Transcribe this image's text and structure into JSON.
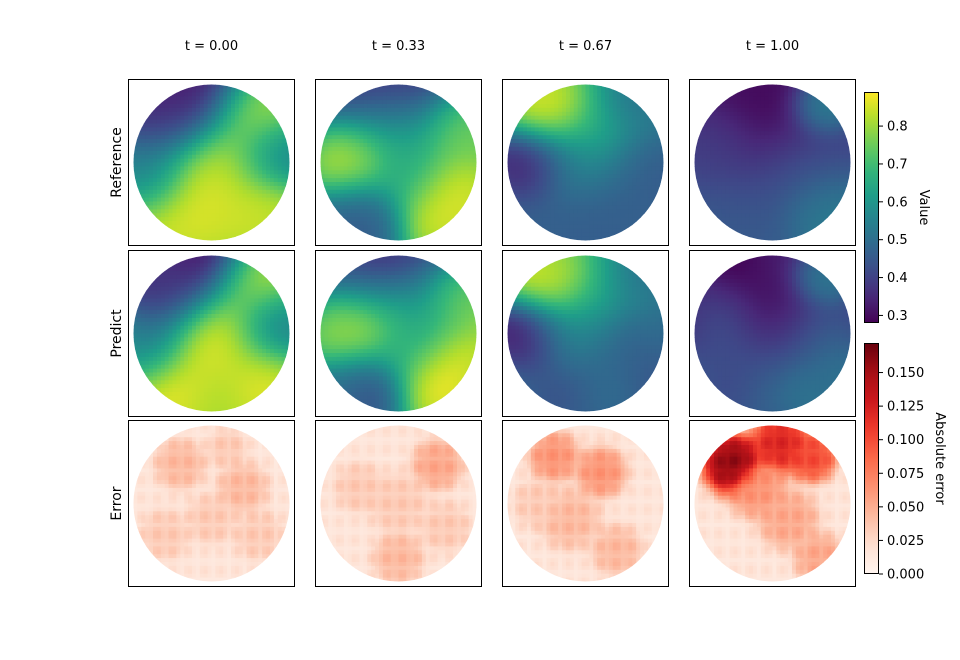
{
  "chart_data": {
    "type": "heatmap",
    "layout": "grid",
    "columns": [
      "t = 0.00",
      "t = 0.33",
      "t = 0.67",
      "t = 1.00"
    ],
    "rows": [
      "Reference",
      "Predict",
      "Error"
    ],
    "domain_shape": "circle",
    "value_colorbar": {
      "label": "Value",
      "colormap": "viridis",
      "range": [
        0.28,
        0.89
      ],
      "ticks": [
        0.3,
        0.4,
        0.5,
        0.6,
        0.7,
        0.8
      ],
      "tick_labels": [
        "0.3",
        "0.4",
        "0.5",
        "0.6",
        "0.7",
        "0.8"
      ]
    },
    "error_colorbar": {
      "label": "Absolute error",
      "colormap": "Reds",
      "range": [
        0.0,
        0.172
      ],
      "ticks": [
        0.0,
        0.025,
        0.05,
        0.075,
        0.1,
        0.125,
        0.15
      ],
      "tick_labels": [
        "0.000",
        "0.025",
        "0.050",
        "0.075",
        "0.100",
        "0.125",
        "0.150"
      ]
    },
    "fields": {
      "value": [
        [
          {
            "x": 0.4,
            "y": 0.1,
            "r": 0.3,
            "v": 0.29
          },
          {
            "x": 0.15,
            "y": 0.25,
            "r": 0.22,
            "v": 0.31
          },
          {
            "x": 0.75,
            "y": 0.2,
            "r": 0.22,
            "v": 0.87
          },
          {
            "x": 0.35,
            "y": 0.65,
            "r": 0.38,
            "v": 0.88
          },
          {
            "x": 0.62,
            "y": 0.5,
            "r": 0.22,
            "v": 0.86
          },
          {
            "x": 0.8,
            "y": 0.8,
            "r": 0.2,
            "v": 0.85
          },
          {
            "x": 0.85,
            "y": 0.45,
            "r": 0.2,
            "v": 0.52
          },
          {
            "x": 0.1,
            "y": 0.55,
            "r": 0.2,
            "v": 0.45
          }
        ],
        [
          {
            "x": 0.5,
            "y": 0.1,
            "r": 0.3,
            "v": 0.36
          },
          {
            "x": 0.25,
            "y": 0.5,
            "r": 0.2,
            "v": 0.86
          },
          {
            "x": 0.75,
            "y": 0.7,
            "r": 0.25,
            "v": 0.88
          },
          {
            "x": 0.5,
            "y": 0.35,
            "r": 0.25,
            "v": 0.72
          },
          {
            "x": 0.3,
            "y": 0.8,
            "r": 0.2,
            "v": 0.45
          },
          {
            "x": 0.85,
            "y": 0.3,
            "r": 0.2,
            "v": 0.78
          },
          {
            "x": 0.55,
            "y": 0.55,
            "r": 0.2,
            "v": 0.6
          }
        ],
        [
          {
            "x": 0.3,
            "y": 0.2,
            "r": 0.2,
            "v": 0.89
          },
          {
            "x": 0.2,
            "y": 0.5,
            "r": 0.18,
            "v": 0.3
          },
          {
            "x": 0.6,
            "y": 0.3,
            "r": 0.25,
            "v": 0.68
          },
          {
            "x": 0.5,
            "y": 0.75,
            "r": 0.35,
            "v": 0.46
          },
          {
            "x": 0.85,
            "y": 0.5,
            "r": 0.2,
            "v": 0.45
          },
          {
            "x": 0.4,
            "y": 0.5,
            "r": 0.2,
            "v": 0.58
          },
          {
            "x": 0.8,
            "y": 0.15,
            "r": 0.18,
            "v": 0.5
          }
        ],
        [
          {
            "x": 0.45,
            "y": 0.25,
            "r": 0.38,
            "v": 0.28
          },
          {
            "x": 0.35,
            "y": 0.75,
            "r": 0.35,
            "v": 0.45
          },
          {
            "x": 0.8,
            "y": 0.15,
            "r": 0.15,
            "v": 0.6
          },
          {
            "x": 0.7,
            "y": 0.55,
            "r": 0.25,
            "v": 0.45
          },
          {
            "x": 0.8,
            "y": 0.8,
            "r": 0.2,
            "v": 0.55
          },
          {
            "x": 0.15,
            "y": 0.4,
            "r": 0.2,
            "v": 0.4
          }
        ]
      ],
      "error": [
        [
          {
            "x": 0.3,
            "y": 0.25,
            "r": 0.1,
            "v": 0.04
          },
          {
            "x": 0.7,
            "y": 0.4,
            "r": 0.1,
            "v": 0.04
          },
          {
            "x": 0.5,
            "y": 0.6,
            "r": 0.1,
            "v": 0.03
          },
          {
            "x": 0.2,
            "y": 0.7,
            "r": 0.1,
            "v": 0.03
          },
          {
            "x": 0.8,
            "y": 0.7,
            "r": 0.1,
            "v": 0.03
          },
          {
            "x": 0.6,
            "y": 0.15,
            "r": 0.08,
            "v": 0.03
          }
        ],
        [
          {
            "x": 0.75,
            "y": 0.25,
            "r": 0.1,
            "v": 0.05
          },
          {
            "x": 0.5,
            "y": 0.5,
            "r": 0.12,
            "v": 0.03
          },
          {
            "x": 0.5,
            "y": 0.85,
            "r": 0.1,
            "v": 0.04
          },
          {
            "x": 0.25,
            "y": 0.4,
            "r": 0.1,
            "v": 0.03
          },
          {
            "x": 0.8,
            "y": 0.65,
            "r": 0.1,
            "v": 0.03
          }
        ],
        [
          {
            "x": 0.3,
            "y": 0.2,
            "r": 0.1,
            "v": 0.06
          },
          {
            "x": 0.6,
            "y": 0.3,
            "r": 0.1,
            "v": 0.06
          },
          {
            "x": 0.4,
            "y": 0.6,
            "r": 0.12,
            "v": 0.04
          },
          {
            "x": 0.7,
            "y": 0.8,
            "r": 0.1,
            "v": 0.04
          },
          {
            "x": 0.2,
            "y": 0.5,
            "r": 0.1,
            "v": 0.03
          }
        ],
        [
          {
            "x": 0.25,
            "y": 0.25,
            "r": 0.12,
            "v": 0.16
          },
          {
            "x": 0.55,
            "y": 0.12,
            "r": 0.12,
            "v": 0.12
          },
          {
            "x": 0.75,
            "y": 0.2,
            "r": 0.1,
            "v": 0.1
          },
          {
            "x": 0.4,
            "y": 0.4,
            "r": 0.12,
            "v": 0.06
          },
          {
            "x": 0.6,
            "y": 0.6,
            "r": 0.12,
            "v": 0.05
          },
          {
            "x": 0.8,
            "y": 0.85,
            "r": 0.1,
            "v": 0.05
          }
        ]
      ]
    }
  }
}
